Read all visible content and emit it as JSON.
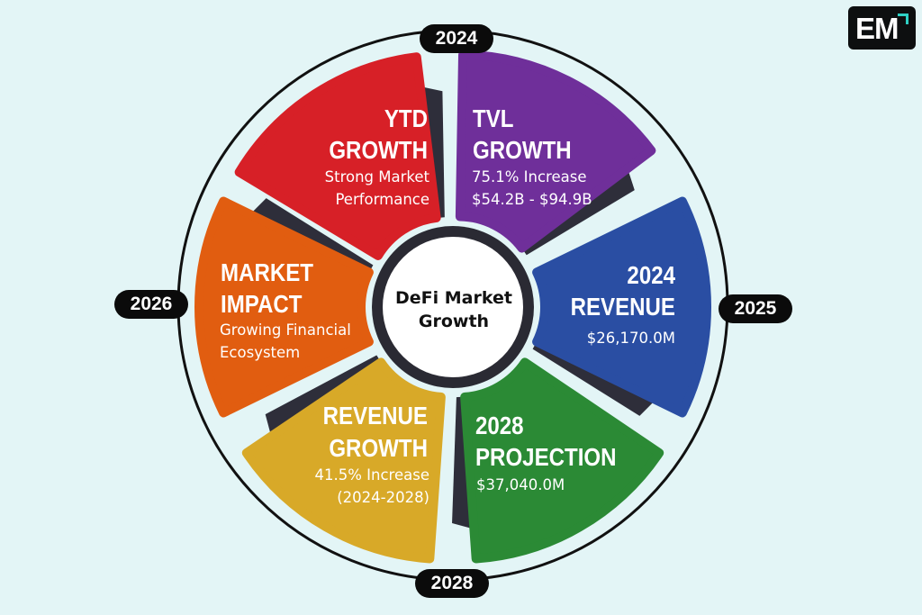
{
  "center": {
    "line1": "DeFi Market",
    "line2": "Growth"
  },
  "years": {
    "top": "2024",
    "right": "2025",
    "bottom": "2028",
    "left": "2026"
  },
  "logo": {
    "text": "EM",
    "accent": "#2ed0c4"
  },
  "segments": [
    {
      "id": "ytd",
      "title1": "YTD",
      "title2": "GROWTH",
      "sub1": "Strong Market",
      "sub2": "Performance",
      "color": "#d72027"
    },
    {
      "id": "tvl",
      "title1": "TVL",
      "title2": "GROWTH",
      "sub1": "75.1% Increase",
      "sub2": "$54.2B - $94.9B",
      "color": "#6f2f9a"
    },
    {
      "id": "revenue2024",
      "title1": "2024",
      "title2": "REVENUE",
      "sub1": "$26,170.0M",
      "color": "#2a4ea3"
    },
    {
      "id": "projection2028",
      "title1": "2028",
      "title2": "PROJECTION",
      "sub1": "$37,040.0M",
      "color": "#2b8a35"
    },
    {
      "id": "revenue-growth",
      "title1": "REVENUE",
      "title2": "GROWTH",
      "sub1": "41.5% Increase",
      "sub2": "(2024-2028)",
      "color": "#d8a928"
    },
    {
      "id": "market-impact",
      "title1": "MARKET",
      "title2": "IMPACT",
      "sub1": "Growing Financial",
      "sub2": "Ecosystem",
      "color": "#e15d10"
    }
  ]
}
